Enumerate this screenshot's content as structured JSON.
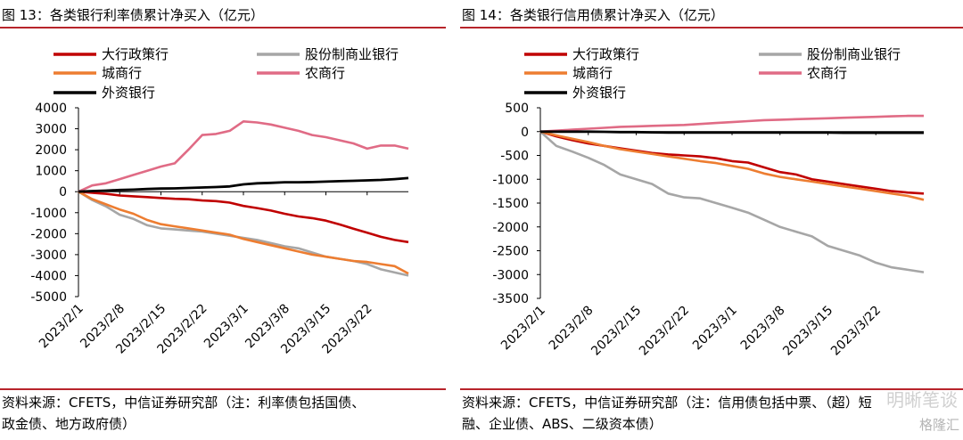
{
  "chart_data": [
    {
      "type": "line",
      "title": "图 13：各类银行利率债累计净买入（亿元）",
      "source_lines": [
        "资料来源：CFETS，中信证券研究部（注：利率债包括国债、",
        "政金债、地方政府债）"
      ],
      "x": [
        "2023/2/1",
        "2023/2/3",
        "2023/2/6",
        "2023/2/8",
        "2023/2/10",
        "2023/2/13",
        "2023/2/15",
        "2023/2/17",
        "2023/2/20",
        "2023/2/22",
        "2023/2/24",
        "2023/2/27",
        "2023/3/1",
        "2023/3/3",
        "2023/3/6",
        "2023/3/8",
        "2023/3/10",
        "2023/3/13",
        "2023/3/15",
        "2023/3/17",
        "2023/3/20",
        "2023/3/22",
        "2023/3/24",
        "2023/3/27",
        "2023/3/29"
      ],
      "xticks": [
        "2023/2/1",
        "2023/2/8",
        "2023/2/15",
        "2023/2/22",
        "2023/3/1",
        "2023/3/8",
        "2023/3/15",
        "2023/3/22"
      ],
      "ylim": [
        -5000,
        4000
      ],
      "yticks": [
        "4000",
        "3000",
        "2000",
        "1000",
        "0",
        "-1000",
        "-2000",
        "-3000",
        "-4000",
        "-5000"
      ],
      "ytick_values": [
        4000,
        3000,
        2000,
        1000,
        0,
        -1000,
        -2000,
        -3000,
        -4000,
        -5000
      ],
      "legend_position": "top",
      "series": [
        {
          "name": "大行政策行",
          "color": "#c00000",
          "width": 2.6,
          "values": [
            0,
            -50,
            -100,
            -180,
            -220,
            -260,
            -300,
            -340,
            -360,
            -420,
            -450,
            -520,
            -680,
            -780,
            -900,
            -1050,
            -1180,
            -1260,
            -1380,
            -1560,
            -1760,
            -1950,
            -2150,
            -2300,
            -2400
          ]
        },
        {
          "name": "股份制商业银行",
          "color": "#a6a6a6",
          "width": 2.6,
          "values": [
            0,
            -400,
            -700,
            -1100,
            -1300,
            -1600,
            -1750,
            -1800,
            -1850,
            -1900,
            -2000,
            -2100,
            -2200,
            -2300,
            -2450,
            -2600,
            -2700,
            -2900,
            -3100,
            -3200,
            -3300,
            -3450,
            -3700,
            -3850,
            -4000
          ]
        },
        {
          "name": "城商行",
          "color": "#ed7d31",
          "width": 2.6,
          "values": [
            0,
            -350,
            -600,
            -850,
            -1050,
            -1350,
            -1550,
            -1650,
            -1750,
            -1850,
            -1950,
            -2050,
            -2250,
            -2400,
            -2550,
            -2700,
            -2850,
            -3000,
            -3100,
            -3200,
            -3300,
            -3350,
            -3450,
            -3550,
            -3900
          ]
        },
        {
          "name": "农商行",
          "color": "#e06b85",
          "width": 2.6,
          "values": [
            0,
            300,
            400,
            600,
            800,
            1000,
            1200,
            1350,
            2000,
            2700,
            2750,
            2900,
            3350,
            3300,
            3200,
            3050,
            2900,
            2700,
            2600,
            2450,
            2300,
            2050,
            2200,
            2200,
            2050
          ]
        },
        {
          "name": "外资银行",
          "color": "#000000",
          "width": 2.8,
          "values": [
            0,
            30,
            50,
            80,
            100,
            130,
            150,
            160,
            180,
            200,
            220,
            250,
            350,
            400,
            420,
            450,
            450,
            460,
            480,
            500,
            520,
            540,
            560,
            600,
            650
          ]
        }
      ]
    },
    {
      "type": "line",
      "title": "图 14：各类银行信用债累计净买入（亿元）",
      "source_lines": [
        "资料来源：CFETS，中信证券研究部（注：信用债包括中票、（超）短",
        "融、企业债、ABS、二级资本债）"
      ],
      "x": [
        "2023/2/1",
        "2023/2/3",
        "2023/2/6",
        "2023/2/8",
        "2023/2/10",
        "2023/2/13",
        "2023/2/15",
        "2023/2/17",
        "2023/2/20",
        "2023/2/22",
        "2023/2/24",
        "2023/2/27",
        "2023/3/1",
        "2023/3/3",
        "2023/3/6",
        "2023/3/8",
        "2023/3/10",
        "2023/3/13",
        "2023/3/15",
        "2023/3/17",
        "2023/3/20",
        "2023/3/22",
        "2023/3/24",
        "2023/3/27",
        "2023/3/29"
      ],
      "xticks": [
        "2023/2/1",
        "2023/2/8",
        "2023/2/15",
        "2023/2/22",
        "2023/3/1",
        "2023/3/8",
        "2023/3/15",
        "2023/3/22"
      ],
      "ylim": [
        -3500,
        500
      ],
      "yticks": [
        "500",
        "0",
        "-500",
        "-1000",
        "-1500",
        "-2000",
        "-2500",
        "-3000",
        "-3500"
      ],
      "ytick_values": [
        500,
        0,
        -500,
        -1000,
        -1500,
        -2000,
        -2500,
        -3000,
        -3500
      ],
      "legend_position": "top",
      "series": [
        {
          "name": "大行政策行",
          "color": "#c00000",
          "width": 2.6,
          "values": [
            0,
            -100,
            -180,
            -250,
            -300,
            -350,
            -400,
            -450,
            -480,
            -500,
            -520,
            -560,
            -620,
            -650,
            -750,
            -850,
            -900,
            -1000,
            -1050,
            -1100,
            -1150,
            -1200,
            -1250,
            -1280,
            -1300
          ]
        },
        {
          "name": "股份制商业银行",
          "color": "#a6a6a6",
          "width": 2.6,
          "values": [
            0,
            -300,
            -420,
            -550,
            -700,
            -900,
            -1000,
            -1100,
            -1300,
            -1380,
            -1400,
            -1500,
            -1600,
            -1700,
            -1850,
            -2000,
            -2100,
            -2200,
            -2400,
            -2500,
            -2600,
            -2750,
            -2850,
            -2900,
            -2950
          ]
        },
        {
          "name": "城商行",
          "color": "#ed7d31",
          "width": 2.6,
          "values": [
            0,
            -80,
            -150,
            -220,
            -300,
            -370,
            -420,
            -470,
            -520,
            -570,
            -620,
            -660,
            -720,
            -780,
            -880,
            -950,
            -1000,
            -1050,
            -1100,
            -1150,
            -1200,
            -1250,
            -1300,
            -1350,
            -1430
          ]
        },
        {
          "name": "农商行",
          "color": "#e06b85",
          "width": 2.6,
          "values": [
            0,
            20,
            40,
            60,
            80,
            100,
            110,
            120,
            130,
            140,
            160,
            180,
            200,
            220,
            240,
            250,
            260,
            270,
            280,
            290,
            300,
            310,
            320,
            330,
            330
          ]
        },
        {
          "name": "外资银行",
          "color": "#000000",
          "width": 2.8,
          "values": [
            0,
            0,
            0,
            0,
            -5,
            -10,
            -10,
            -15,
            -20,
            -20,
            -20,
            -20,
            -20,
            -20,
            -20,
            -20,
            -20,
            -20,
            -20,
            -25,
            -25,
            -25,
            -25,
            -25,
            -25
          ]
        }
      ]
    }
  ],
  "watermark": {
    "text": "明晰笔谈",
    "text2": "格隆汇"
  }
}
